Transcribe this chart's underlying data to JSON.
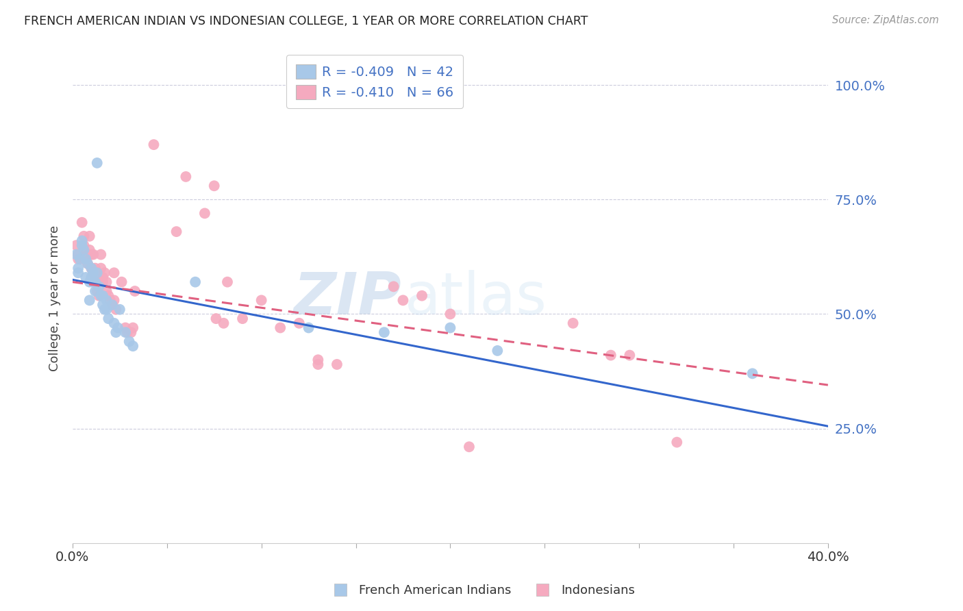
{
  "title": "FRENCH AMERICAN INDIAN VS INDONESIAN COLLEGE, 1 YEAR OR MORE CORRELATION CHART",
  "source": "Source: ZipAtlas.com",
  "xlabel_ticks_labels": [
    "0.0%",
    "",
    "",
    "",
    "",
    "",
    "",
    "",
    "40.0%"
  ],
  "xlabel_tick_vals": [
    0.0,
    0.05,
    0.1,
    0.15,
    0.2,
    0.25,
    0.3,
    0.35,
    0.4
  ],
  "ylabel": "College, 1 year or more",
  "ylabel_ticks_labels": [
    "100.0%",
    "75.0%",
    "50.0%",
    "25.0%"
  ],
  "ylabel_tick_vals": [
    1.0,
    0.75,
    0.5,
    0.25
  ],
  "xmin": 0.0,
  "xmax": 0.4,
  "ymin": 0.0,
  "ymax": 1.07,
  "legend_r_blue": "-0.409",
  "legend_n_blue": "42",
  "legend_r_pink": "-0.410",
  "legend_n_pink": "66",
  "blue_color": "#a8c8e8",
  "pink_color": "#f5aabf",
  "blue_line_color": "#3366cc",
  "pink_line_color": "#e06080",
  "watermark_zip": "ZIP",
  "watermark_atlas": "atlas",
  "blue_dots": [
    [
      0.002,
      0.63
    ],
    [
      0.003,
      0.6
    ],
    [
      0.003,
      0.59
    ],
    [
      0.004,
      0.62
    ],
    [
      0.005,
      0.65
    ],
    [
      0.005,
      0.66
    ],
    [
      0.006,
      0.64
    ],
    [
      0.007,
      0.62
    ],
    [
      0.007,
      0.58
    ],
    [
      0.008,
      0.61
    ],
    [
      0.009,
      0.57
    ],
    [
      0.009,
      0.53
    ],
    [
      0.01,
      0.6
    ],
    [
      0.01,
      0.58
    ],
    [
      0.011,
      0.57
    ],
    [
      0.011,
      0.59
    ],
    [
      0.012,
      0.57
    ],
    [
      0.012,
      0.55
    ],
    [
      0.013,
      0.59
    ],
    [
      0.013,
      0.83
    ],
    [
      0.014,
      0.56
    ],
    [
      0.015,
      0.54
    ],
    [
      0.016,
      0.54
    ],
    [
      0.016,
      0.52
    ],
    [
      0.017,
      0.51
    ],
    [
      0.018,
      0.53
    ],
    [
      0.018,
      0.51
    ],
    [
      0.019,
      0.49
    ],
    [
      0.021,
      0.52
    ],
    [
      0.022,
      0.48
    ],
    [
      0.023,
      0.46
    ],
    [
      0.024,
      0.47
    ],
    [
      0.025,
      0.51
    ],
    [
      0.028,
      0.46
    ],
    [
      0.03,
      0.44
    ],
    [
      0.032,
      0.43
    ],
    [
      0.065,
      0.57
    ],
    [
      0.125,
      0.47
    ],
    [
      0.165,
      0.46
    ],
    [
      0.2,
      0.47
    ],
    [
      0.225,
      0.42
    ],
    [
      0.36,
      0.37
    ]
  ],
  "pink_dots": [
    [
      0.002,
      0.65
    ],
    [
      0.003,
      0.63
    ],
    [
      0.003,
      0.62
    ],
    [
      0.004,
      0.62
    ],
    [
      0.005,
      0.7
    ],
    [
      0.006,
      0.65
    ],
    [
      0.006,
      0.67
    ],
    [
      0.007,
      0.63
    ],
    [
      0.008,
      0.63
    ],
    [
      0.008,
      0.61
    ],
    [
      0.009,
      0.67
    ],
    [
      0.009,
      0.64
    ],
    [
      0.01,
      0.63
    ],
    [
      0.01,
      0.6
    ],
    [
      0.01,
      0.6
    ],
    [
      0.011,
      0.63
    ],
    [
      0.011,
      0.59
    ],
    [
      0.012,
      0.6
    ],
    [
      0.012,
      0.58
    ],
    [
      0.013,
      0.59
    ],
    [
      0.013,
      0.57
    ],
    [
      0.013,
      0.55
    ],
    [
      0.014,
      0.54
    ],
    [
      0.015,
      0.63
    ],
    [
      0.015,
      0.6
    ],
    [
      0.016,
      0.58
    ],
    [
      0.016,
      0.57
    ],
    [
      0.017,
      0.59
    ],
    [
      0.018,
      0.57
    ],
    [
      0.018,
      0.55
    ],
    [
      0.019,
      0.54
    ],
    [
      0.02,
      0.53
    ],
    [
      0.021,
      0.52
    ],
    [
      0.022,
      0.59
    ],
    [
      0.022,
      0.53
    ],
    [
      0.023,
      0.51
    ],
    [
      0.026,
      0.57
    ],
    [
      0.028,
      0.47
    ],
    [
      0.029,
      0.46
    ],
    [
      0.031,
      0.46
    ],
    [
      0.032,
      0.47
    ],
    [
      0.033,
      0.55
    ],
    [
      0.043,
      0.87
    ],
    [
      0.055,
      0.68
    ],
    [
      0.06,
      0.8
    ],
    [
      0.07,
      0.72
    ],
    [
      0.075,
      0.78
    ],
    [
      0.076,
      0.49
    ],
    [
      0.08,
      0.48
    ],
    [
      0.082,
      0.57
    ],
    [
      0.09,
      0.49
    ],
    [
      0.1,
      0.53
    ],
    [
      0.11,
      0.47
    ],
    [
      0.12,
      0.48
    ],
    [
      0.13,
      0.4
    ],
    [
      0.13,
      0.39
    ],
    [
      0.14,
      0.39
    ],
    [
      0.17,
      0.56
    ],
    [
      0.175,
      0.53
    ],
    [
      0.185,
      0.54
    ],
    [
      0.2,
      0.5
    ],
    [
      0.21,
      0.21
    ],
    [
      0.265,
      0.48
    ],
    [
      0.285,
      0.41
    ],
    [
      0.295,
      0.41
    ],
    [
      0.32,
      0.22
    ]
  ],
  "blue_trendline": [
    [
      0.0,
      0.575
    ],
    [
      0.4,
      0.255
    ]
  ],
  "pink_trendline": [
    [
      0.0,
      0.57
    ],
    [
      0.4,
      0.345
    ]
  ]
}
